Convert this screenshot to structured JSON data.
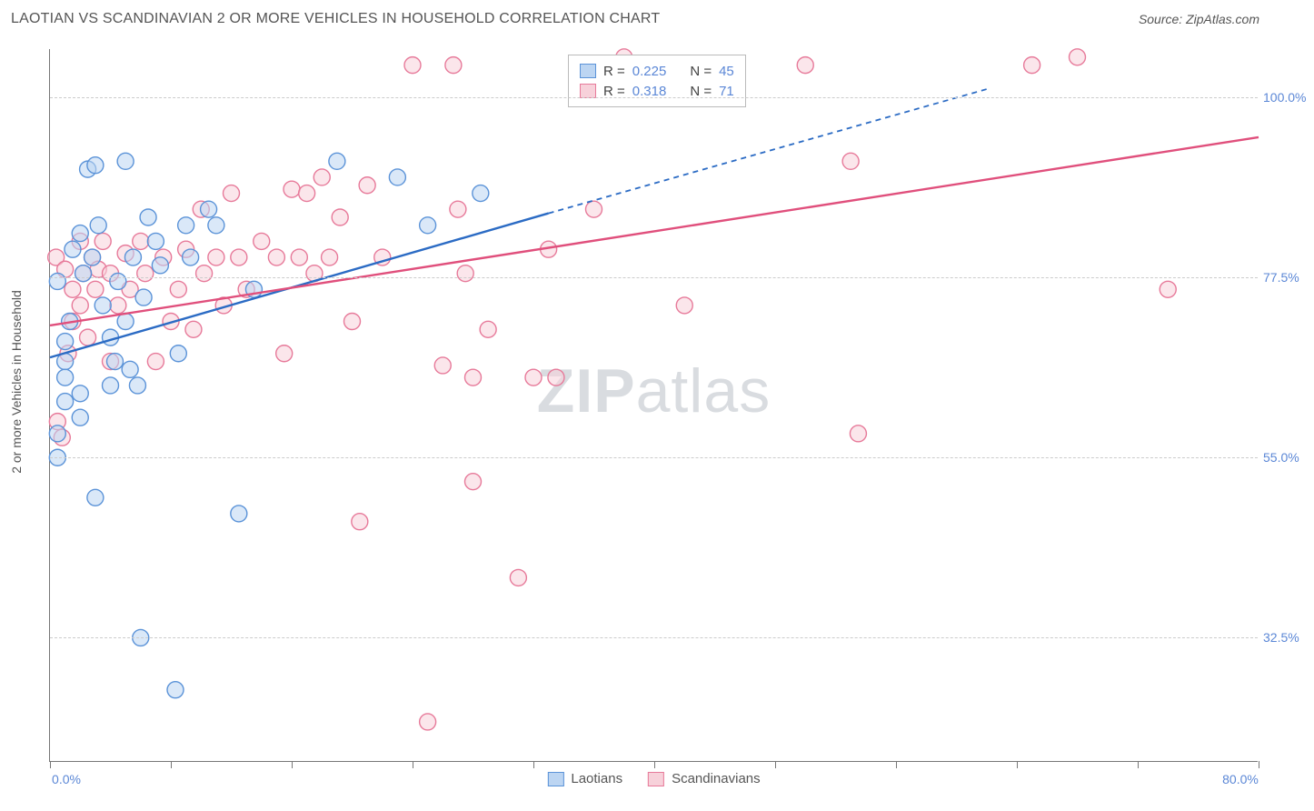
{
  "header": {
    "title": "LAOTIAN VS SCANDINAVIAN 2 OR MORE VEHICLES IN HOUSEHOLD CORRELATION CHART",
    "source_label": "Source: ",
    "source_name": "ZipAtlas.com"
  },
  "chart": {
    "type": "scatter",
    "ylabel": "2 or more Vehicles in Household",
    "watermark_a": "ZIP",
    "watermark_b": "atlas",
    "background_color": "#ffffff",
    "grid_color": "#cccccc",
    "axis_color": "#777777",
    "tick_label_color": "#5b87d6",
    "xlim": [
      0,
      80
    ],
    "ylim": [
      17,
      106
    ],
    "yticks": [
      {
        "v": 32.5,
        "label": "32.5%"
      },
      {
        "v": 55.0,
        "label": "55.0%"
      },
      {
        "v": 77.5,
        "label": "77.5%"
      },
      {
        "v": 100.0,
        "label": "100.0%"
      }
    ],
    "xtick_positions": [
      0,
      8,
      16,
      24,
      32,
      40,
      48,
      56,
      64,
      72,
      80
    ],
    "xtick_labels": {
      "first": "0.0%",
      "last": "80.0%"
    },
    "marker_radius": 9,
    "marker_stroke_width": 1.4,
    "trend_line_width": 2.4,
    "series": [
      {
        "id": "laotians",
        "label": "Laotians",
        "fill": "#bcd5f2",
        "stroke": "#5b93d8",
        "line_color": "#2b6bc4",
        "R": "0.225",
        "N": "45",
        "trend": {
          "x1": 0,
          "y1": 67.5,
          "x2": 33,
          "y2": 85.5
        },
        "trend_extrap": {
          "x1": 33,
          "y1": 85.5,
          "x2": 62,
          "y2": 101
        },
        "points": [
          [
            0.5,
            77
          ],
          [
            0.5,
            58
          ],
          [
            0.5,
            55
          ],
          [
            1,
            67
          ],
          [
            1,
            62
          ],
          [
            1,
            69.5
          ],
          [
            1,
            65
          ],
          [
            1.3,
            72
          ],
          [
            1.5,
            81
          ],
          [
            2,
            83
          ],
          [
            2,
            63
          ],
          [
            2,
            60
          ],
          [
            2.2,
            78
          ],
          [
            2.5,
            91
          ],
          [
            2.8,
            80
          ],
          [
            3,
            91.5
          ],
          [
            3,
            50
          ],
          [
            3.2,
            84
          ],
          [
            3.5,
            74
          ],
          [
            4,
            64
          ],
          [
            4,
            70
          ],
          [
            4.3,
            67
          ],
          [
            4.5,
            77
          ],
          [
            5,
            92
          ],
          [
            5,
            72
          ],
          [
            5.3,
            66
          ],
          [
            5.5,
            80
          ],
          [
            5.8,
            64
          ],
          [
            6,
            32.5
          ],
          [
            6.2,
            75
          ],
          [
            6.5,
            85
          ],
          [
            7,
            82
          ],
          [
            7.3,
            79
          ],
          [
            8.3,
            26
          ],
          [
            8.5,
            68
          ],
          [
            9,
            84
          ],
          [
            9.3,
            80
          ],
          [
            10.5,
            86
          ],
          [
            11,
            84
          ],
          [
            12.5,
            48
          ],
          [
            13.5,
            76
          ],
          [
            19,
            92
          ],
          [
            23,
            90
          ],
          [
            25,
            84
          ],
          [
            28.5,
            88
          ]
        ]
      },
      {
        "id": "scandinavians",
        "label": "Scandinavians",
        "fill": "#f7d1da",
        "stroke": "#e77a9a",
        "line_color": "#e04f7c",
        "R": "0.318",
        "N": "71",
        "trend": {
          "x1": 0,
          "y1": 71.5,
          "x2": 80,
          "y2": 95
        },
        "points": [
          [
            0.4,
            80
          ],
          [
            0.5,
            59.5
          ],
          [
            0.8,
            57.5
          ],
          [
            1,
            78.5
          ],
          [
            1.2,
            68
          ],
          [
            1.5,
            72
          ],
          [
            1.5,
            76
          ],
          [
            2,
            82
          ],
          [
            2,
            74
          ],
          [
            2.2,
            78
          ],
          [
            2.5,
            70
          ],
          [
            2.8,
            80
          ],
          [
            3,
            76
          ],
          [
            3.2,
            78.5
          ],
          [
            3.5,
            82
          ],
          [
            4,
            67
          ],
          [
            4,
            78
          ],
          [
            4.5,
            74
          ],
          [
            5,
            80.5
          ],
          [
            5.3,
            76
          ],
          [
            6,
            82
          ],
          [
            6.3,
            78
          ],
          [
            7,
            67
          ],
          [
            7.5,
            80
          ],
          [
            8,
            72
          ],
          [
            8.5,
            76
          ],
          [
            9,
            81
          ],
          [
            9.5,
            71
          ],
          [
            10,
            86
          ],
          [
            10.2,
            78
          ],
          [
            11,
            80
          ],
          [
            11.5,
            74
          ],
          [
            12,
            88
          ],
          [
            12.5,
            80
          ],
          [
            13,
            76
          ],
          [
            14,
            82
          ],
          [
            15,
            80
          ],
          [
            15.5,
            68
          ],
          [
            16,
            88.5
          ],
          [
            16.5,
            80
          ],
          [
            17,
            88
          ],
          [
            17.5,
            78
          ],
          [
            18,
            90
          ],
          [
            18.5,
            80
          ],
          [
            19.2,
            85
          ],
          [
            20,
            72
          ],
          [
            20.5,
            47
          ],
          [
            21,
            89
          ],
          [
            22,
            80
          ],
          [
            24,
            104
          ],
          [
            25,
            22
          ],
          [
            26,
            66.5
          ],
          [
            26.7,
            104
          ],
          [
            27,
            86
          ],
          [
            27.5,
            78
          ],
          [
            28,
            65
          ],
          [
            28,
            52
          ],
          [
            29,
            71
          ],
          [
            31,
            40
          ],
          [
            32,
            65
          ],
          [
            33,
            81
          ],
          [
            33.5,
            65
          ],
          [
            36,
            86
          ],
          [
            38,
            105
          ],
          [
            42,
            74
          ],
          [
            50,
            104
          ],
          [
            53,
            92
          ],
          [
            53.5,
            58
          ],
          [
            65,
            104
          ],
          [
            68,
            105
          ],
          [
            74,
            76
          ]
        ]
      }
    ],
    "legend_top": {
      "r_label": "R =",
      "n_label": "N ="
    },
    "legend_bottom": [
      {
        "label": "Laotians",
        "series": 0
      },
      {
        "label": "Scandinavians",
        "series": 1
      }
    ]
  }
}
